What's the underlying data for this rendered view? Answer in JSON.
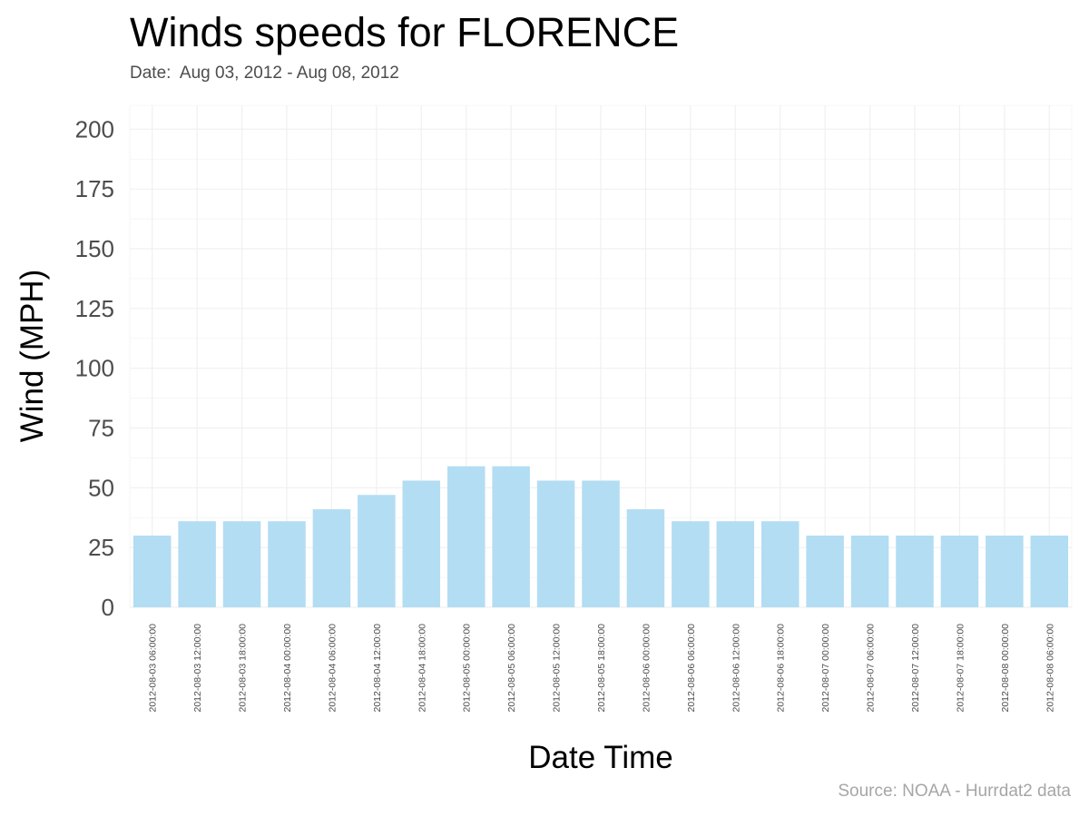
{
  "title": "Winds speeds for FLORENCE",
  "subtitle": "Date:  Aug 03, 2012 - Aug 08, 2012",
  "caption": "Source: NOAA - Hurrdat2 data",
  "colors": {
    "bar": "#b3ddf3",
    "grid": "#f0f0f0",
    "tick_text": "#4d4d4d",
    "axis_title": "#000000"
  },
  "chart_data": {
    "type": "bar",
    "xlabel": "Date Time",
    "ylabel": "Wind (MPH)",
    "ylim": [
      0,
      210
    ],
    "yticks": [
      0,
      25,
      50,
      75,
      100,
      125,
      150,
      175,
      200
    ],
    "grid": true,
    "categories": [
      "2012-08-03 06:00:00",
      "2012-08-03 12:00:00",
      "2012-08-03 18:00:00",
      "2012-08-04 00:00:00",
      "2012-08-04 06:00:00",
      "2012-08-04 12:00:00",
      "2012-08-04 18:00:00",
      "2012-08-05 00:00:00",
      "2012-08-05 06:00:00",
      "2012-08-05 12:00:00",
      "2012-08-05 18:00:00",
      "2012-08-06 00:00:00",
      "2012-08-06 06:00:00",
      "2012-08-06 12:00:00",
      "2012-08-06 18:00:00",
      "2012-08-07 00:00:00",
      "2012-08-07 06:00:00",
      "2012-08-07 12:00:00",
      "2012-08-07 18:00:00",
      "2012-08-08 00:00:00",
      "2012-08-08 06:00:00"
    ],
    "values": [
      30,
      36,
      36,
      36,
      41,
      47,
      53,
      59,
      59,
      53,
      53,
      41,
      36,
      36,
      36,
      30,
      30,
      30,
      30,
      30,
      30
    ]
  }
}
